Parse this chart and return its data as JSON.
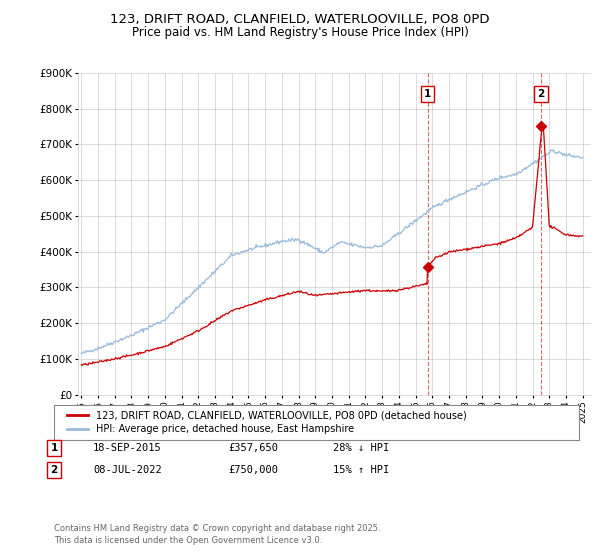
{
  "title": "123, DRIFT ROAD, CLANFIELD, WATERLOOVILLE, PO8 0PD",
  "subtitle": "Price paid vs. HM Land Registry's House Price Index (HPI)",
  "title_fontsize": 9.5,
  "subtitle_fontsize": 8.5,
  "background_color": "#ffffff",
  "plot_bg_color": "#ffffff",
  "grid_color": "#cccccc",
  "red_color": "#cc0000",
  "blue_color": "#99bbdd",
  "marker1_date": 2015.72,
  "marker1_value": 357650,
  "marker2_date": 2022.52,
  "marker2_value": 750000,
  "vline1_date": 2015.72,
  "vline2_date": 2022.52,
  "ylim": [
    0,
    900000
  ],
  "xlim_start": 1994.8,
  "xlim_end": 2025.5,
  "legend_labels": [
    "123, DRIFT ROAD, CLANFIELD, WATERLOOVILLE, PO8 0PD (detached house)",
    "HPI: Average price, detached house, East Hampshire"
  ],
  "table_data": [
    [
      "1",
      "18-SEP-2015",
      "£357,650",
      "28% ↓ HPI"
    ],
    [
      "2",
      "08-JUL-2022",
      "£750,000",
      "15% ↑ HPI"
    ]
  ],
  "footer": "Contains HM Land Registry data © Crown copyright and database right 2025.\nThis data is licensed under the Open Government Licence v3.0."
}
